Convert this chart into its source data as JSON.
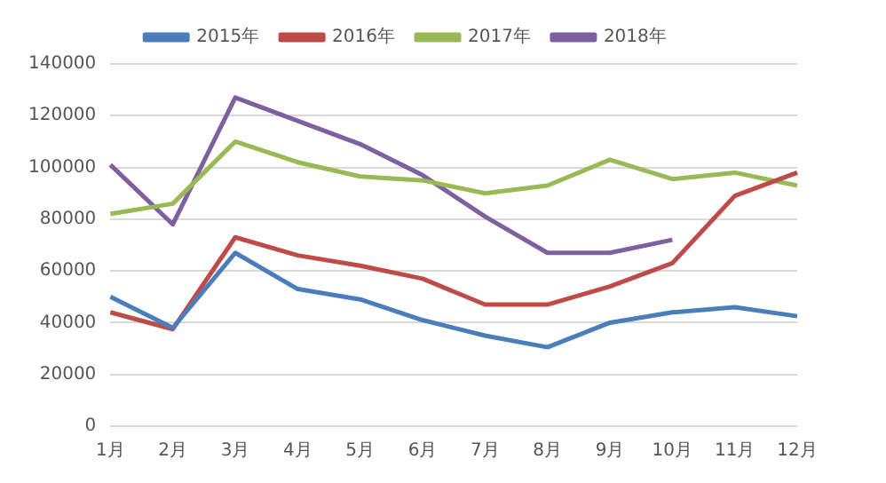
{
  "chart_data": {
    "type": "line",
    "categories": [
      "1月",
      "2月",
      "3月",
      "4月",
      "5月",
      "6月",
      "7月",
      "8月",
      "9月",
      "10月",
      "11月",
      "12月"
    ],
    "series": [
      {
        "name": "2015年",
        "color": "#4a7ebb",
        "values": [
          50000,
          38000,
          67000,
          53000,
          49000,
          41000,
          35000,
          30500,
          40000,
          44000,
          46000,
          42500
        ]
      },
      {
        "name": "2016年",
        "color": "#be4b48",
        "values": [
          44000,
          37500,
          73000,
          66000,
          62000,
          57000,
          47000,
          47000,
          54000,
          63000,
          89000,
          98000
        ]
      },
      {
        "name": "2017年",
        "color": "#98b954",
        "values": [
          82000,
          86000,
          110000,
          102000,
          96500,
          95000,
          90000,
          93000,
          103000,
          95500,
          98000,
          93000
        ]
      },
      {
        "name": "2018年",
        "color": "#7d60a0",
        "values": [
          101000,
          78000,
          127000,
          118000,
          109000,
          97000,
          81000,
          67000,
          67000,
          72000,
          null,
          null
        ]
      }
    ],
    "ylim": [
      0,
      140000
    ],
    "yticks": [
      0,
      20000,
      40000,
      60000,
      80000,
      100000,
      120000,
      140000
    ],
    "grid": "y",
    "legend": "top",
    "marker": "none",
    "line_style": "solid"
  }
}
